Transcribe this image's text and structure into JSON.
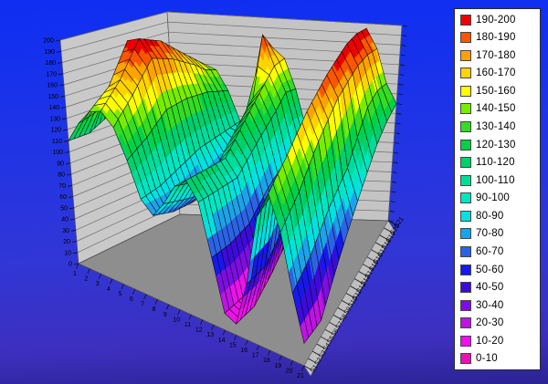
{
  "chart_data": {
    "type": "surface3d",
    "title": "",
    "legend": {
      "position": "right",
      "entries": [
        {
          "label": "190-200",
          "color": "#EE0000"
        },
        {
          "label": "180-190",
          "color": "#FF5500"
        },
        {
          "label": "170-180",
          "color": "#FFA200"
        },
        {
          "label": "160-170",
          "color": "#FFD400"
        },
        {
          "label": "150-160",
          "color": "#FFFF00"
        },
        {
          "label": "140-150",
          "color": "#77EE00"
        },
        {
          "label": "130-140",
          "color": "#33DD22"
        },
        {
          "label": "120-130",
          "color": "#00D245"
        },
        {
          "label": "110-120",
          "color": "#00D06A"
        },
        {
          "label": "100-110",
          "color": "#00DD99"
        },
        {
          "label": "90-100",
          "color": "#00E6C3"
        },
        {
          "label": "80-90",
          "color": "#00E2E2"
        },
        {
          "label": "70-80",
          "color": "#1CA2EA"
        },
        {
          "label": "60-70",
          "color": "#2A63E8"
        },
        {
          "label": "50-60",
          "color": "#1717EE"
        },
        {
          "label": "40-50",
          "color": "#3C0ADC"
        },
        {
          "label": "30-40",
          "color": "#7D0DE2"
        },
        {
          "label": "20-30",
          "color": "#C013E4"
        },
        {
          "label": "10-20",
          "color": "#EE11EE"
        },
        {
          "label": "0-10",
          "color": "#EE0DB7"
        }
      ]
    },
    "z_axis": {
      "min": 0,
      "max": 200,
      "step": 10,
      "tick_labels": [
        "200",
        "190",
        "180",
        "170",
        "160",
        "150",
        "140",
        "130",
        "120",
        "110",
        "100",
        "90",
        "80",
        "70",
        "60",
        "50",
        "40",
        "30",
        "20",
        "10",
        "0"
      ]
    },
    "x_axis": {
      "tick_labels": [
        "1",
        "2",
        "3",
        "4",
        "5",
        "6",
        "7",
        "8",
        "9",
        "10",
        "11",
        "12",
        "13",
        "14",
        "15",
        "16",
        "17",
        "18",
        "19",
        "20",
        "21"
      ]
    },
    "series_axis": {
      "tick_labels": [
        "S1",
        "S2",
        "S3",
        "S4",
        "S5",
        "S6",
        "S7",
        "S8",
        "S9",
        "S10",
        "S11",
        "S12",
        "S13",
        "S14",
        "S15",
        "S16",
        "S17",
        "S18",
        "S19",
        "S20",
        "S21"
      ]
    },
    "surface": {
      "z_band_size": 10,
      "anchor_series_indices": [
        1,
        5,
        9,
        13,
        17,
        19,
        21
      ],
      "anchor_rows": [
        [
          110,
          130,
          145,
          150,
          140,
          115,
          85,
          75,
          90,
          110,
          120,
          105,
          60,
          15,
          10,
          50,
          115,
          140,
          110,
          60,
          20
        ],
        [
          110,
          135,
          160,
          170,
          160,
          125,
          85,
          65,
          80,
          100,
          115,
          100,
          55,
          10,
          5,
          45,
          120,
          155,
          125,
          70,
          15
        ],
        [
          120,
          160,
          195,
          200,
          185,
          140,
          90,
          60,
          70,
          95,
          110,
          95,
          55,
          15,
          15,
          60,
          135,
          175,
          150,
          90,
          45
        ],
        [
          110,
          145,
          175,
          190,
          175,
          140,
          95,
          70,
          90,
          115,
          130,
          110,
          70,
          30,
          30,
          75,
          150,
          190,
          170,
          105,
          75
        ],
        [
          105,
          130,
          155,
          170,
          160,
          135,
          95,
          80,
          110,
          135,
          150,
          125,
          80,
          40,
          40,
          85,
          160,
          200,
          180,
          140,
          105
        ],
        [
          100,
          125,
          150,
          160,
          150,
          130,
          95,
          90,
          130,
          190,
          160,
          135,
          95,
          50,
          45,
          85,
          160,
          200,
          180,
          145,
          115
        ],
        [
          100,
          120,
          140,
          150,
          145,
          125,
          95,
          85,
          120,
          170,
          160,
          130,
          90,
          45,
          40,
          80,
          155,
          195,
          175,
          140,
          120
        ]
      ]
    }
  },
  "colors": {
    "wall": "#C9C9C9",
    "wall_back": "#C4C4C4",
    "wall_grid": "#6E6E6E",
    "floor": "#8E8E8E",
    "floor_skirt": "#BFBFBF",
    "axis_text": "#000000",
    "cell_line": "#0A0A0A"
  }
}
